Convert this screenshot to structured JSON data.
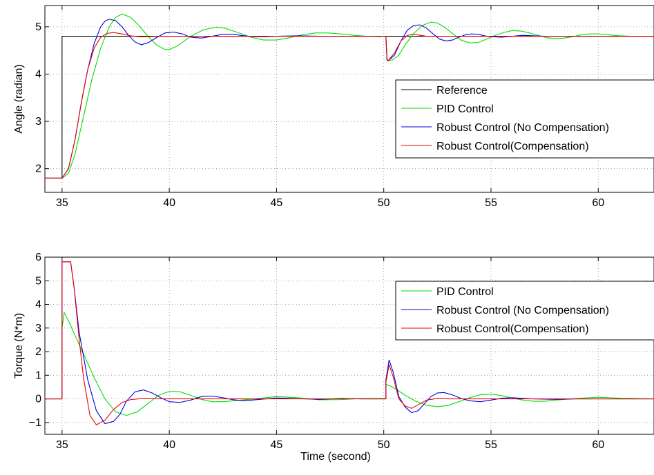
{
  "chart_data": [
    {
      "type": "line",
      "title": "",
      "xlabel": "",
      "ylabel": "Angle (radian)",
      "xlim": [
        34.2,
        62.6
      ],
      "ylim": [
        1.5,
        5.45
      ],
      "xticks": [
        35,
        40,
        45,
        50,
        55,
        60
      ],
      "xtick_labels": [
        "35",
        "40",
        "45",
        "50",
        "55",
        "60"
      ],
      "yticks": [
        2,
        3,
        4,
        5
      ],
      "ytick_labels": [
        "2",
        "3",
        "4",
        "5"
      ],
      "grid": true,
      "legend": {
        "position": "right",
        "entries": [
          "Reference",
          "PID Control",
          "Robust Control (No Compensation)",
          "Robust Control(Compensation)"
        ]
      },
      "series": [
        {
          "name": "Reference",
          "color": "#000000",
          "x": [
            34.2,
            35.0,
            35.0,
            50.1,
            50.1,
            62.6
          ],
          "y": [
            1.8,
            1.8,
            4.8,
            4.8,
            4.8,
            4.8
          ]
        },
        {
          "name": "PID Control",
          "color": "#00dd00",
          "x": [
            34.2,
            35.0,
            35.3,
            35.6,
            36.0,
            36.4,
            36.8,
            37.2,
            37.5,
            37.8,
            38.2,
            38.6,
            39.0,
            39.4,
            39.8,
            40.0,
            40.4,
            41.0,
            41.6,
            42.2,
            42.6,
            43.2,
            43.8,
            44.4,
            45.0,
            45.6,
            46.2,
            46.8,
            47.4,
            48.0,
            48.6,
            49.2,
            49.8,
            50.1,
            50.15,
            50.2,
            50.4,
            50.7,
            51.0,
            51.4,
            51.8,
            52.2,
            52.5,
            52.8,
            53.2,
            53.6,
            54.0,
            54.4,
            54.8,
            55.2,
            55.6,
            56.0,
            56.4,
            56.8,
            57.2,
            57.6,
            58.0,
            58.4,
            58.8,
            59.2,
            59.6,
            60.0,
            60.5,
            61.0,
            61.5,
            62.0,
            62.6
          ],
          "y": [
            1.8,
            1.8,
            1.9,
            2.3,
            3.1,
            3.9,
            4.55,
            5.0,
            5.2,
            5.27,
            5.2,
            5.02,
            4.8,
            4.62,
            4.52,
            4.52,
            4.6,
            4.8,
            4.94,
            4.99,
            4.97,
            4.88,
            4.78,
            4.72,
            4.72,
            4.77,
            4.83,
            4.87,
            4.87,
            4.85,
            4.82,
            4.8,
            4.79,
            4.8,
            4.35,
            4.28,
            4.3,
            4.4,
            4.62,
            4.86,
            5.03,
            5.1,
            5.08,
            5.0,
            4.86,
            4.72,
            4.66,
            4.67,
            4.74,
            4.82,
            4.88,
            4.92,
            4.91,
            4.87,
            4.82,
            4.77,
            4.75,
            4.76,
            4.79,
            4.83,
            4.85,
            4.85,
            4.83,
            4.81,
            4.8,
            4.8,
            4.8
          ]
        },
        {
          "name": "Robust Control (No Compensation)",
          "color": "#0000dd",
          "x": [
            34.2,
            35.0,
            35.3,
            35.6,
            35.9,
            36.2,
            36.5,
            36.8,
            37.0,
            37.2,
            37.5,
            37.8,
            38.1,
            38.4,
            38.7,
            39.0,
            39.4,
            39.8,
            40.2,
            40.6,
            41.0,
            41.5,
            42.0,
            42.5,
            43.0,
            43.5,
            44.0,
            44.5,
            45.0,
            46.0,
            47.0,
            48.0,
            49.0,
            50.1,
            50.15,
            50.2,
            50.5,
            50.8,
            51.1,
            51.4,
            51.7,
            52.0,
            52.3,
            52.6,
            52.9,
            53.2,
            53.5,
            53.8,
            54.1,
            54.4,
            54.7,
            55.0,
            55.5,
            56.0,
            56.5,
            57.0,
            57.5,
            58.0,
            59.0,
            60.0,
            61.0,
            62.6
          ],
          "y": [
            1.8,
            1.8,
            2.0,
            2.6,
            3.4,
            4.1,
            4.65,
            5.0,
            5.12,
            5.16,
            5.13,
            5.0,
            4.82,
            4.68,
            4.62,
            4.66,
            4.77,
            4.87,
            4.89,
            4.85,
            4.78,
            4.76,
            4.8,
            4.84,
            4.84,
            4.81,
            4.79,
            4.79,
            4.8,
            4.81,
            4.8,
            4.8,
            4.8,
            4.8,
            4.3,
            4.28,
            4.4,
            4.7,
            4.93,
            5.03,
            5.04,
            4.97,
            4.85,
            4.74,
            4.7,
            4.72,
            4.78,
            4.83,
            4.85,
            4.84,
            4.81,
            4.79,
            4.78,
            4.8,
            4.82,
            4.81,
            4.8,
            4.8,
            4.8,
            4.8,
            4.8,
            4.8
          ]
        },
        {
          "name": "Robust Control(Compensation)",
          "color": "#ee0000",
          "x": [
            34.2,
            35.0,
            35.3,
            35.6,
            35.9,
            36.2,
            36.5,
            36.8,
            37.1,
            37.4,
            37.8,
            38.2,
            38.6,
            39.0,
            39.5,
            40.0,
            41.0,
            42.0,
            45.0,
            50.1,
            50.15,
            50.2,
            50.5,
            50.8,
            51.1,
            51.4,
            51.7,
            52.0,
            52.5,
            53.0,
            62.6
          ],
          "y": [
            1.8,
            1.8,
            2.0,
            2.6,
            3.4,
            4.1,
            4.55,
            4.78,
            4.86,
            4.88,
            4.85,
            4.81,
            4.79,
            4.79,
            4.8,
            4.8,
            4.8,
            4.8,
            4.8,
            4.8,
            4.3,
            4.28,
            4.45,
            4.7,
            4.82,
            4.84,
            4.82,
            4.8,
            4.8,
            4.8,
            4.8
          ]
        }
      ]
    },
    {
      "type": "line",
      "title": "",
      "xlabel": "Time (second)",
      "ylabel": "Torque (N*m)",
      "xlim": [
        34.2,
        62.6
      ],
      "ylim": [
        -1.5,
        6.0
      ],
      "xticks": [
        35,
        40,
        45,
        50,
        55,
        60
      ],
      "xtick_labels": [
        "35",
        "40",
        "45",
        "50",
        "55",
        "60"
      ],
      "yticks": [
        -1,
        0,
        1,
        2,
        3,
        4,
        5,
        6
      ],
      "ytick_labels": [
        "−1",
        "0",
        "1",
        "2",
        "3",
        "4",
        "5",
        "6"
      ],
      "grid": true,
      "legend": {
        "position": "right",
        "entries": [
          "PID Control",
          "Robust Control (No Compensation)",
          "Robust Control(Compensation)"
        ]
      },
      "series": [
        {
          "name": "PID Control",
          "color": "#00dd00",
          "x": [
            34.2,
            35.0,
            35.0,
            35.1,
            35.3,
            35.6,
            36.0,
            36.5,
            37.0,
            37.5,
            38.0,
            38.5,
            39.0,
            39.5,
            40.0,
            40.5,
            41.0,
            41.5,
            42.0,
            42.5,
            43.0,
            44.0,
            45.0,
            46.0,
            47.0,
            48.0,
            49.0,
            50.1,
            50.1,
            50.3,
            50.6,
            51.0,
            51.5,
            52.0,
            52.5,
            53.0,
            53.5,
            54.0,
            54.5,
            55.0,
            55.5,
            56.0,
            56.5,
            57.0,
            57.5,
            58.0,
            59.0,
            60.0,
            61.0,
            62.6
          ],
          "y": [
            0.0,
            0.0,
            3.0,
            3.65,
            3.3,
            2.7,
            1.9,
            0.9,
            0.0,
            -0.55,
            -0.7,
            -0.55,
            -0.2,
            0.15,
            0.32,
            0.3,
            0.15,
            -0.02,
            -0.12,
            -0.12,
            -0.08,
            0.0,
            0.1,
            0.05,
            -0.04,
            -0.03,
            0.02,
            0.02,
            0.62,
            0.55,
            0.4,
            0.15,
            -0.1,
            -0.27,
            -0.33,
            -0.28,
            -0.12,
            0.05,
            0.18,
            0.2,
            0.14,
            0.03,
            -0.05,
            -0.1,
            -0.1,
            -0.05,
            0.02,
            0.07,
            0.03,
            0.0
          ]
        },
        {
          "name": "Robust Control (No Compensation)",
          "color": "#0000dd",
          "x": [
            34.2,
            35.0,
            35.0,
            35.3,
            35.4,
            35.55,
            35.8,
            36.2,
            36.6,
            37.0,
            37.4,
            37.7,
            38.0,
            38.4,
            38.8,
            39.2,
            39.6,
            40.0,
            40.5,
            41.0,
            41.5,
            42.0,
            42.5,
            43.0,
            43.5,
            44.0,
            45.0,
            46.0,
            47.0,
            48.0,
            49.0,
            50.1,
            50.1,
            50.25,
            50.45,
            50.7,
            51.0,
            51.3,
            51.6,
            51.9,
            52.2,
            52.5,
            52.8,
            53.2,
            53.6,
            54.0,
            54.5,
            55.0,
            55.5,
            56.0,
            57.0,
            58.0,
            59.0,
            60.0,
            62.6
          ],
          "y": [
            0.0,
            0.0,
            5.8,
            5.8,
            5.8,
            4.8,
            2.8,
            0.8,
            -0.5,
            -1.05,
            -0.95,
            -0.65,
            -0.1,
            0.3,
            0.38,
            0.25,
            0.05,
            -0.12,
            -0.15,
            -0.05,
            0.1,
            0.12,
            0.05,
            -0.04,
            -0.08,
            -0.04,
            0.04,
            0.01,
            -0.02,
            0.02,
            0.0,
            0.0,
            0.8,
            1.65,
            1.1,
            0.1,
            -0.35,
            -0.58,
            -0.5,
            -0.2,
            0.1,
            0.25,
            0.27,
            0.17,
            0.02,
            -0.08,
            -0.12,
            -0.05,
            0.03,
            0.05,
            0.0,
            -0.02,
            0.0,
            0.0,
            0.0
          ]
        },
        {
          "name": "Robust Control(Compensation)",
          "color": "#ee0000",
          "x": [
            34.2,
            35.0,
            35.0,
            35.3,
            35.4,
            35.55,
            35.8,
            36.0,
            36.3,
            36.6,
            37.0,
            37.4,
            37.8,
            38.2,
            38.8,
            39.5,
            40.0,
            41.0,
            42.0,
            45.0,
            50.1,
            50.1,
            50.25,
            50.45,
            50.7,
            51.0,
            51.3,
            51.6,
            52.0,
            52.5,
            53.0,
            62.6
          ],
          "y": [
            0.0,
            0.0,
            5.8,
            5.8,
            5.8,
            4.8,
            2.5,
            0.9,
            -0.7,
            -1.1,
            -0.9,
            -0.45,
            -0.15,
            -0.03,
            0.02,
            0.0,
            0.0,
            0.0,
            0.0,
            0.0,
            0.0,
            0.7,
            1.45,
            0.9,
            0.0,
            -0.3,
            -0.4,
            -0.25,
            -0.05,
            0.02,
            0.0,
            0.0
          ]
        }
      ]
    }
  ]
}
